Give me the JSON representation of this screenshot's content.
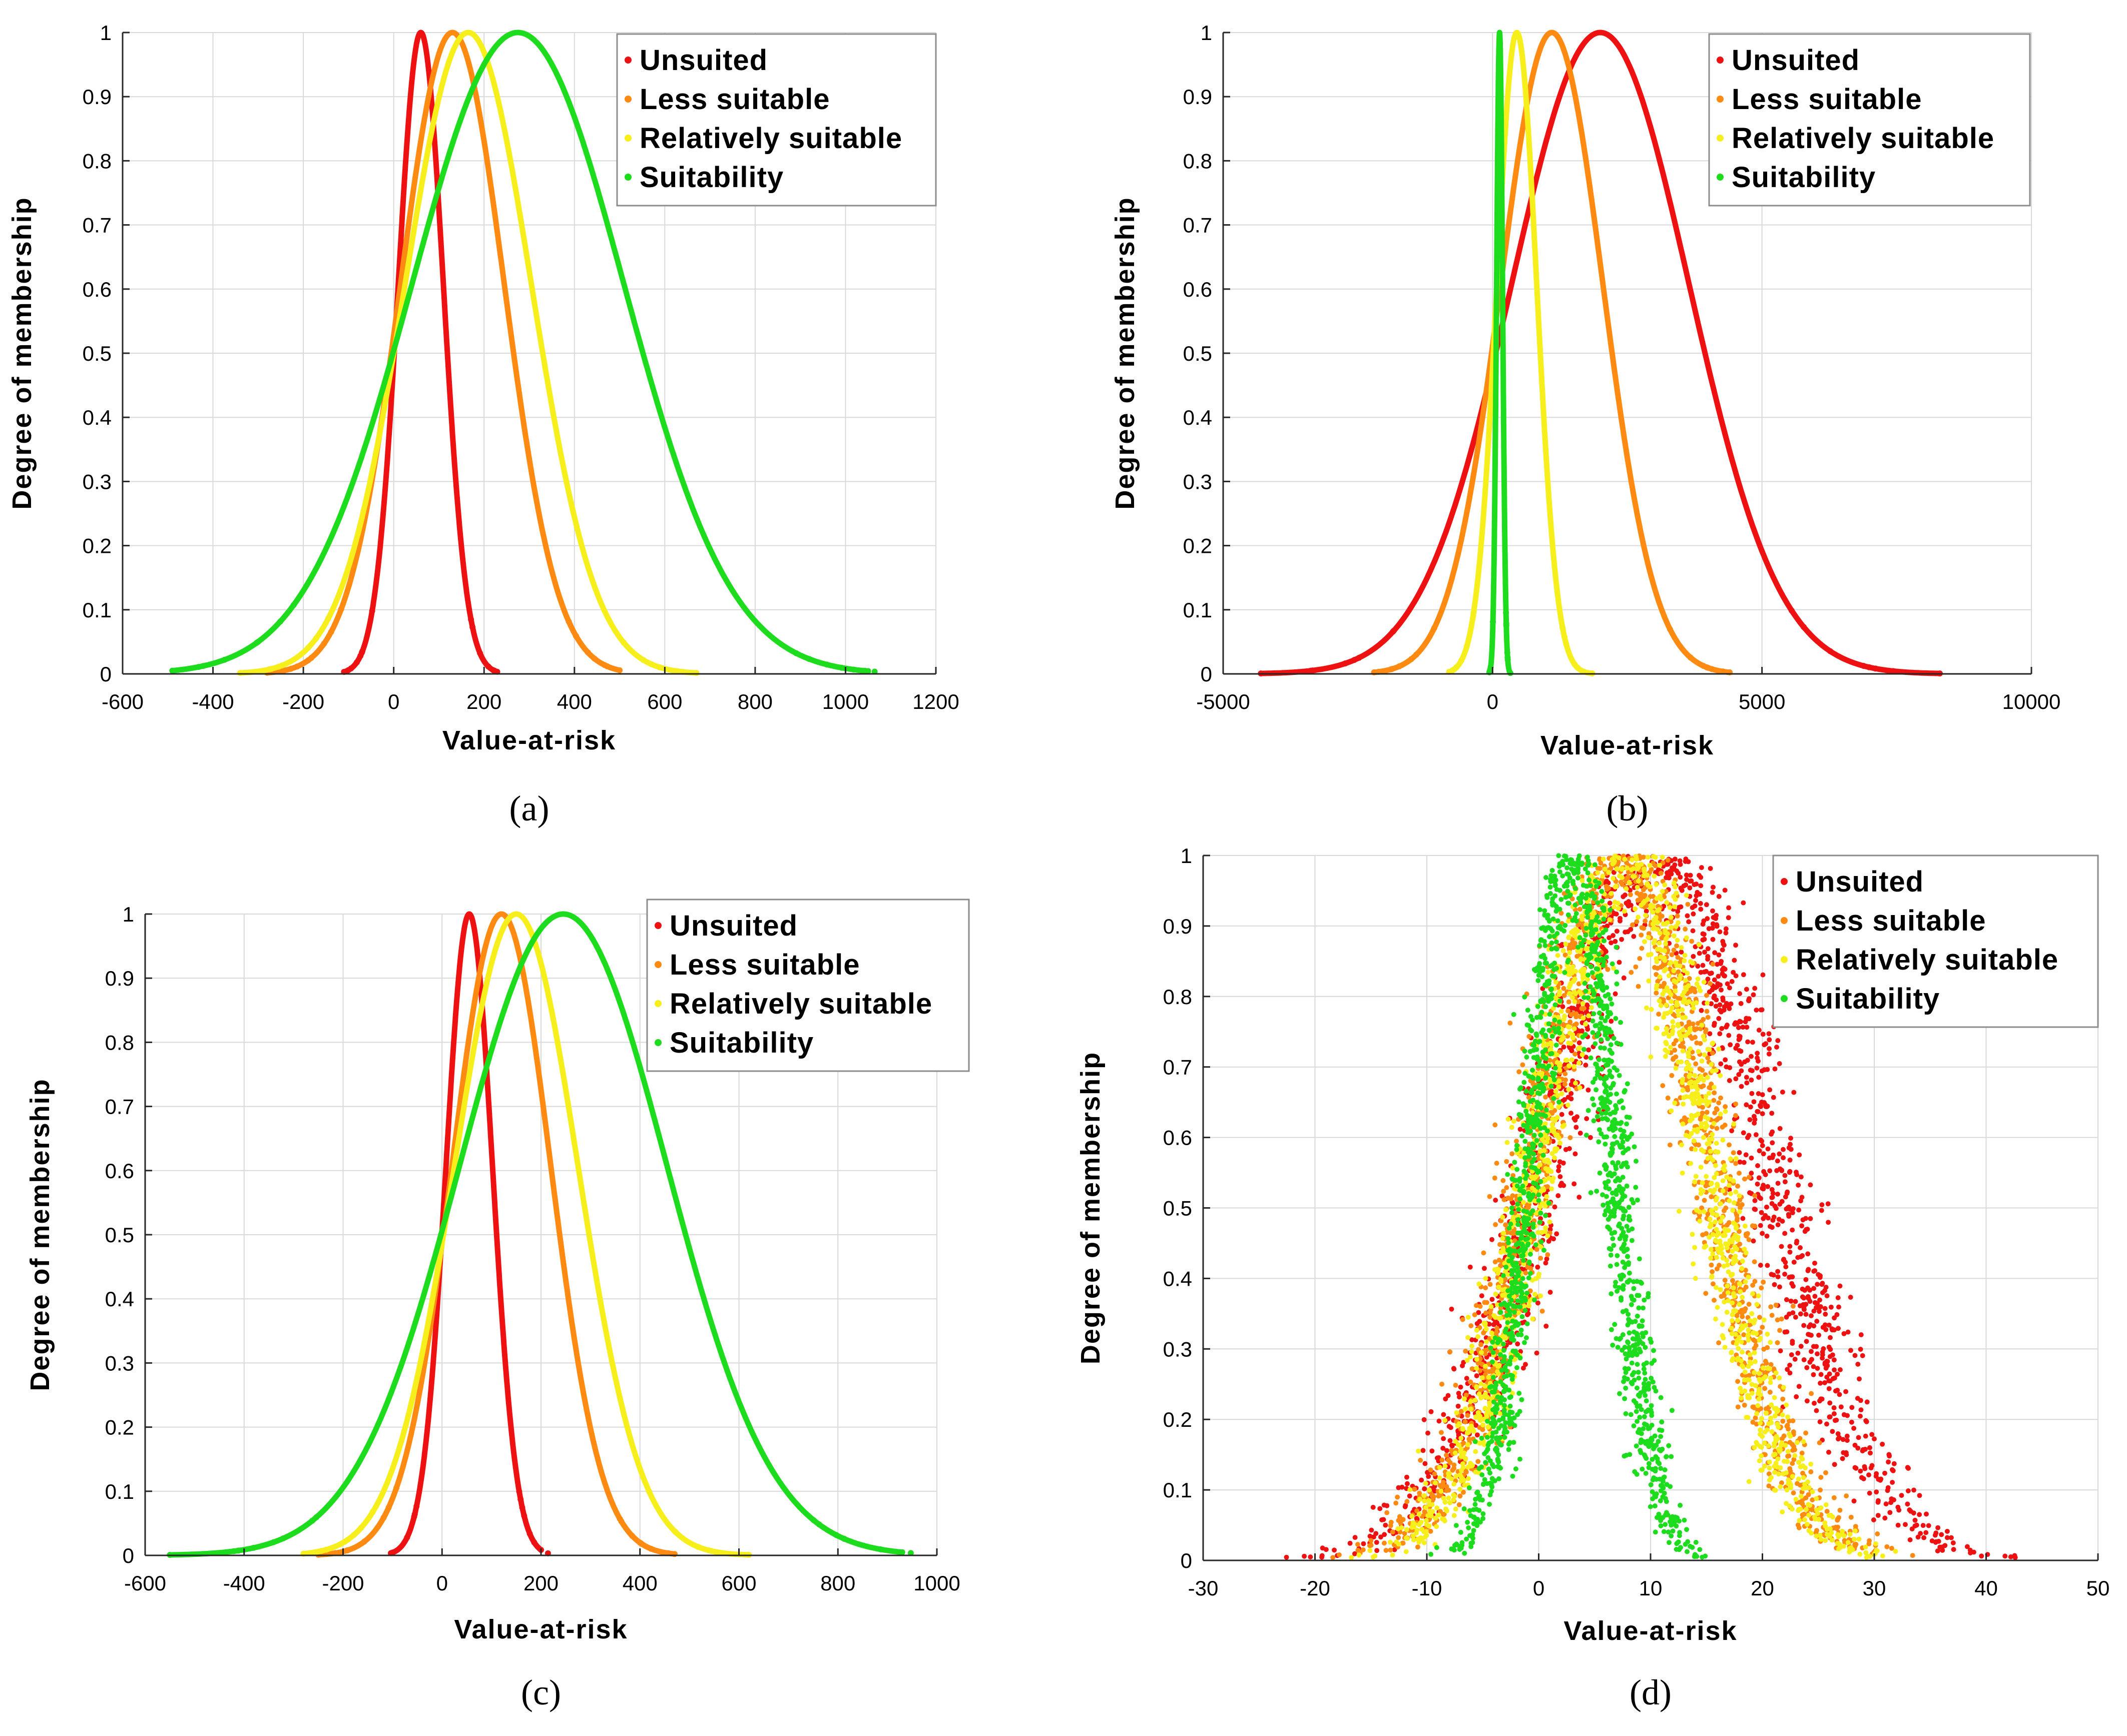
{
  "colors": {
    "unsuited": "#ee1111",
    "less_suitable": "#ff8a12",
    "relatively_suitable": "#f7ef1c",
    "suitability": "#1ddc1d",
    "grid": "#d9d9d9",
    "axis": "#262626"
  },
  "chart_data": [
    {
      "id": "a",
      "type": "scatter",
      "panel_label": "(a)",
      "xlabel": "Value-at-risk",
      "ylabel": "Degree of membership",
      "xlim": [
        -600,
        1200
      ],
      "ylim": [
        0,
        1
      ],
      "xticks": [
        -600,
        -400,
        -200,
        0,
        200,
        400,
        600,
        800,
        1000,
        1200
      ],
      "yticks": [
        0,
        0.1,
        0.2,
        0.3,
        0.4,
        0.5,
        0.6,
        0.7,
        0.8,
        0.9,
        1
      ],
      "grid": true,
      "legend_position": "top-right",
      "series": [
        {
          "name": "Unsuited",
          "color_key": "unsuited",
          "center": 60,
          "sigma": 50,
          "x_min": -110,
          "x_max": 220,
          "scatter_noise": 0
        },
        {
          "name": "Less suitable",
          "color_key": "less_suitable",
          "center": 130,
          "sigma": 115,
          "x_min": -280,
          "x_max": 500,
          "scatter_noise": 0
        },
        {
          "name": "Relatively suitable",
          "color_key": "relatively_suitable",
          "center": 165,
          "sigma": 140,
          "x_min": -340,
          "x_max": 670,
          "scatter_noise": 0
        },
        {
          "name": "Suitability",
          "color_key": "suitability",
          "center": 275,
          "sigma": 235,
          "x_min": -490,
          "x_max": 1050,
          "scatter_noise": 0
        }
      ]
    },
    {
      "id": "b",
      "type": "scatter",
      "panel_label": "(b)",
      "xlabel": "Value-at-risk",
      "ylabel": "Degree of membership",
      "xlim": [
        -5000,
        10000
      ],
      "ylim": [
        0,
        1
      ],
      "xticks": [
        -5000,
        0,
        5000,
        10000
      ],
      "yticks": [
        0,
        0.1,
        0.2,
        0.3,
        0.4,
        0.5,
        0.6,
        0.7,
        0.8,
        0.9,
        1
      ],
      "grid": true,
      "legend_position": "top-right",
      "series": [
        {
          "name": "Unsuited",
          "color_key": "unsuited",
          "center": 2000,
          "sigma": 1650,
          "x_min": -4300,
          "x_max": 8300,
          "scatter_noise": 0
        },
        {
          "name": "Less suitable",
          "color_key": "less_suitable",
          "center": 1100,
          "sigma": 950,
          "x_min": -2200,
          "x_max": 4400,
          "scatter_noise": 0
        },
        {
          "name": "Relatively suitable",
          "color_key": "relatively_suitable",
          "center": 450,
          "sigma": 370,
          "x_min": -750,
          "x_max": 1850,
          "scatter_noise": 0
        },
        {
          "name": "Suitability",
          "color_key": "suitability",
          "center": 130,
          "sigma": 55,
          "x_min": -60,
          "x_max": 330,
          "scatter_noise": 0
        }
      ]
    },
    {
      "id": "c",
      "type": "scatter",
      "panel_label": "(c)",
      "xlabel": "Value-at-risk",
      "ylabel": "Degree of membership",
      "xlim": [
        -600,
        1000
      ],
      "ylim": [
        0,
        1
      ],
      "xticks": [
        -600,
        -400,
        -200,
        0,
        200,
        400,
        600,
        800,
        1000
      ],
      "yticks": [
        0,
        0.1,
        0.2,
        0.3,
        0.4,
        0.5,
        0.6,
        0.7,
        0.8,
        0.9,
        1
      ],
      "grid": true,
      "legend_position": "top-right",
      "series": [
        {
          "name": "Unsuited",
          "color_key": "unsuited",
          "center": 55,
          "sigma": 47,
          "x_min": -100,
          "x_max": 200,
          "scatter_noise": 0
        },
        {
          "name": "Less suitable",
          "color_key": "less_suitable",
          "center": 120,
          "sigma": 100,
          "x_min": -250,
          "x_max": 470,
          "scatter_noise": 0
        },
        {
          "name": "Relatively suitable",
          "color_key": "relatively_suitable",
          "center": 150,
          "sigma": 125,
          "x_min": -280,
          "x_max": 620,
          "scatter_noise": 0
        },
        {
          "name": "Suitability",
          "color_key": "suitability",
          "center": 245,
          "sigma": 210,
          "x_min": -550,
          "x_max": 930,
          "scatter_noise": 0
        }
      ]
    },
    {
      "id": "d",
      "type": "scatter",
      "panel_label": "(d)",
      "xlabel": "Value-at-risk",
      "ylabel": "Degree of membership",
      "xlim": [
        -30,
        50
      ],
      "ylim": [
        0,
        1
      ],
      "xticks": [
        -30,
        -20,
        -10,
        0,
        10,
        20,
        30,
        40,
        50
      ],
      "yticks": [
        0,
        0.1,
        0.2,
        0.3,
        0.4,
        0.5,
        0.6,
        0.7,
        0.8,
        0.9,
        1
      ],
      "grid": true,
      "legend_position": "top-right",
      "series": [
        {
          "name": "Unsuited",
          "color_key": "unsuited",
          "center": 10.5,
          "sigma": 9.5,
          "x_min": -22,
          "x_max": 42,
          "scatter_noise": 1.6
        },
        {
          "name": "Less suitable",
          "color_key": "less_suitable",
          "center": 7.5,
          "sigma": 7.5,
          "x_min": -18,
          "x_max": 34,
          "scatter_noise": 1.3
        },
        {
          "name": "Relatively suitable",
          "color_key": "relatively_suitable",
          "center": 7.5,
          "sigma": 7.2,
          "x_min": -18,
          "x_max": 34,
          "scatter_noise": 1.2
        },
        {
          "name": "Suitability",
          "color_key": "suitability",
          "center": 3,
          "sigma": 3.6,
          "x_min": -5,
          "x_max": 13,
          "scatter_noise": 0.8
        }
      ]
    }
  ]
}
